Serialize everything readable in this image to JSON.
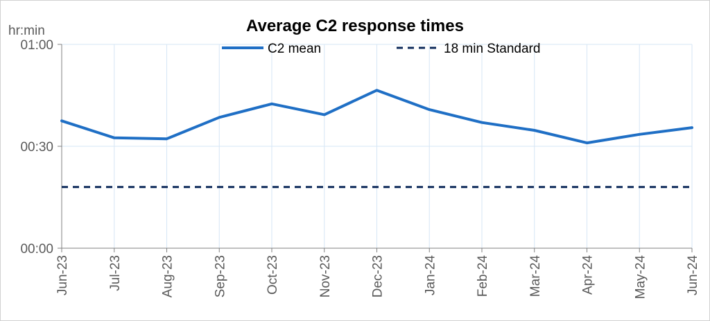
{
  "chart_data": {
    "type": "line",
    "title": "Average C2 response times",
    "ylabel": "hr:min",
    "y_unit": "minutes",
    "ylim": [
      0,
      60
    ],
    "yticks": [
      {
        "value": 0,
        "label": "00:00"
      },
      {
        "value": 30,
        "label": "00:30"
      },
      {
        "value": 60,
        "label": "01:00"
      }
    ],
    "categories": [
      "Jun-23",
      "Jul-23",
      "Aug-23",
      "Sep-23",
      "Oct-23",
      "Nov-23",
      "Dec-23",
      "Jan-24",
      "Feb-24",
      "Mar-24",
      "Apr-24",
      "May-24",
      "Jun-24"
    ],
    "grid": true,
    "legend_position": "top",
    "series": [
      {
        "name": "C2 mean",
        "style": "solid",
        "color": "#1f6fc5",
        "values": [
          37.5,
          32.5,
          32.2,
          38.5,
          42.5,
          39.3,
          46.5,
          40.8,
          37.0,
          34.7,
          31.0,
          33.5,
          35.5
        ]
      },
      {
        "name": "18 min Standard",
        "style": "dashed",
        "color": "#0d2a5a",
        "values": [
          18,
          18,
          18,
          18,
          18,
          18,
          18,
          18,
          18,
          18,
          18,
          18,
          18
        ]
      }
    ]
  }
}
